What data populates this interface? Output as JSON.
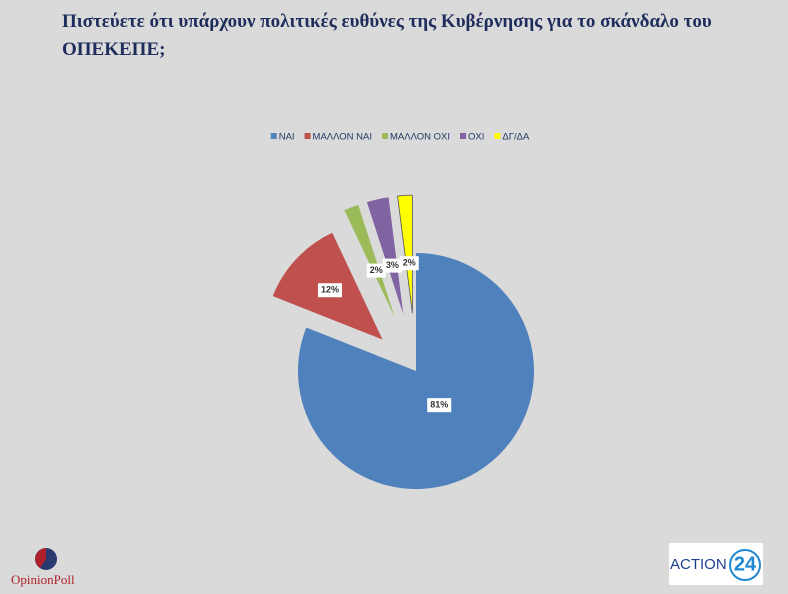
{
  "chart_data": {
    "type": "pie",
    "title": "Πιστεύετε ότι υπάρχουν πολιτικές ευθύνες της Κυβέρνησης για το σκάνδαλο του ΟΠΕΚΕΠΕ;",
    "categories": [
      "ΝΑΙ",
      "ΜΑΛΛΟΝ ΝΑΙ",
      "ΜΑΛΛΟΝ ΟΧΙ",
      "ΟΧΙ",
      "ΔΓ/ΔΑ"
    ],
    "values": [
      81,
      12,
      2,
      3,
      2
    ],
    "value_labels": [
      "81%",
      "12%",
      "2%",
      "3%",
      "2%"
    ],
    "colors": [
      "#4f81bd",
      "#c0504d",
      "#9bbb59",
      "#8064a2",
      "#ffff00"
    ],
    "legend": "top"
  },
  "footer": {
    "left_logo": "OpinionPoll",
    "right_logo_text": "ACTION",
    "right_logo_number": "24"
  }
}
